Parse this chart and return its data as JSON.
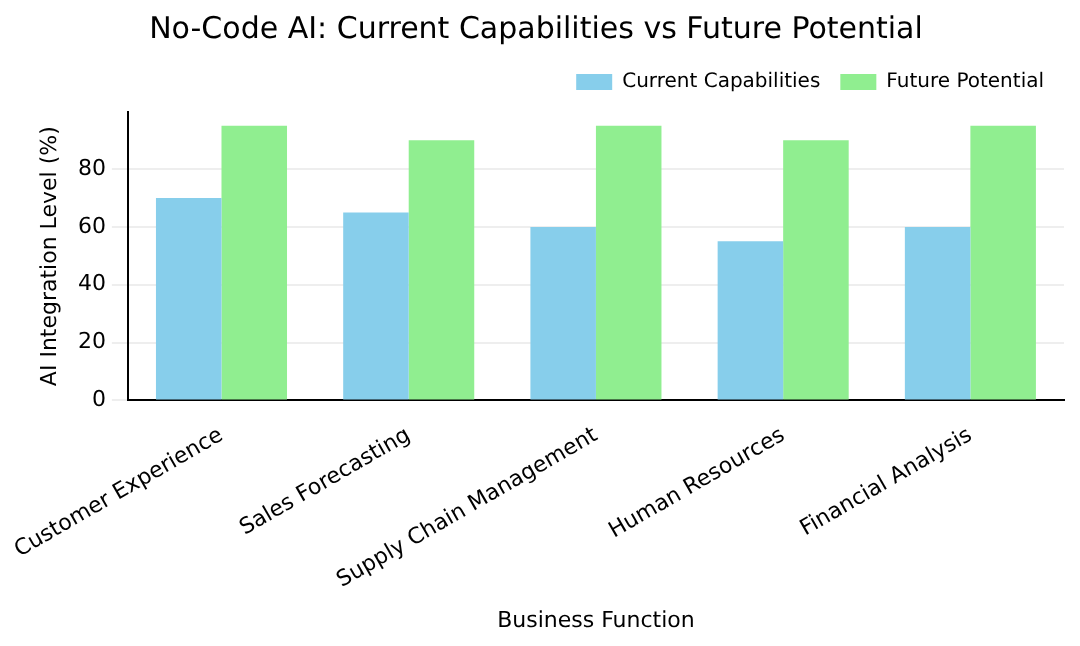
{
  "chart_data": {
    "type": "bar",
    "title": "No-Code AI: Current Capabilities vs Future Potential",
    "xlabel": "Business Function",
    "ylabel": "AI Integration Level (%)",
    "categories": [
      "Customer Experience",
      "Sales Forecasting",
      "Supply Chain Management",
      "Human Resources",
      "Financial Analysis"
    ],
    "series": [
      {
        "name": "Current Capabilities",
        "color": "#87ceeb",
        "values": [
          70,
          65,
          60,
          55,
          60
        ]
      },
      {
        "name": "Future Potential",
        "color": "#90ee90",
        "values": [
          95,
          90,
          95,
          90,
          95
        ]
      }
    ],
    "ylim": [
      0,
      99.75
    ],
    "yticks": [
      0,
      20,
      40,
      60,
      80
    ],
    "grid": "y",
    "legend": "top right"
  }
}
